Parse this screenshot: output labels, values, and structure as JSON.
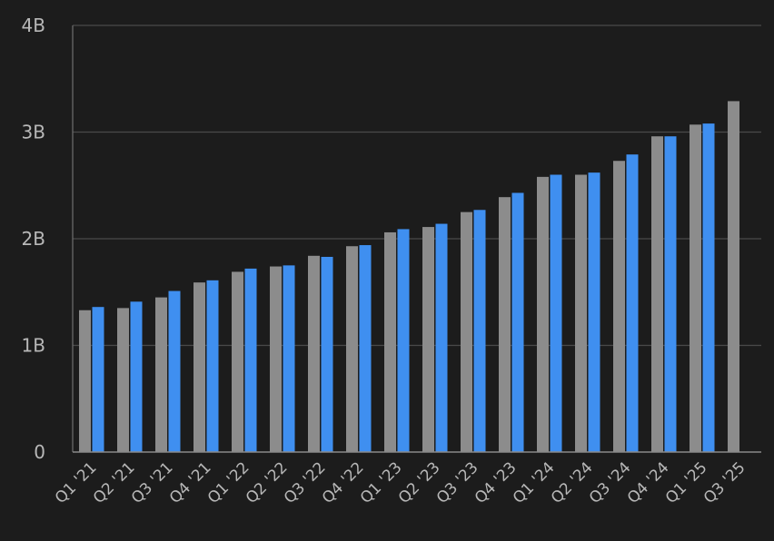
{
  "chart_data": {
    "type": "bar",
    "categories": [
      "Q1 '21",
      "Q2 '21",
      "Q3 '21",
      "Q4 '21",
      "Q1 '22",
      "Q2 '22",
      "Q3 '22",
      "Q4 '22",
      "Q1 '23",
      "Q2 '23",
      "Q3 '23",
      "Q4 '23",
      "Q1 '24",
      "Q2 '24",
      "Q3 '24",
      "Q4 '24",
      "Q1 '25",
      "Q3 '25"
    ],
    "series": [
      {
        "color": "#8c8c8c",
        "values": [
          1.33,
          1.35,
          1.45,
          1.59,
          1.69,
          1.74,
          1.84,
          1.93,
          2.06,
          2.11,
          2.25,
          2.39,
          2.58,
          2.6,
          2.73,
          2.96,
          3.07,
          3.29
        ]
      },
      {
        "color": "#3f8ff0",
        "values": [
          1.36,
          1.41,
          1.51,
          1.61,
          1.72,
          1.75,
          1.83,
          1.94,
          2.09,
          2.14,
          2.27,
          2.43,
          2.6,
          2.62,
          2.79,
          2.96,
          3.08,
          null
        ]
      }
    ],
    "yticks": [
      "0",
      "1B",
      "2B",
      "3B",
      "4B"
    ],
    "ylim": [
      0,
      4
    ],
    "grid": true,
    "title": "",
    "xlabel": "",
    "ylabel": ""
  }
}
